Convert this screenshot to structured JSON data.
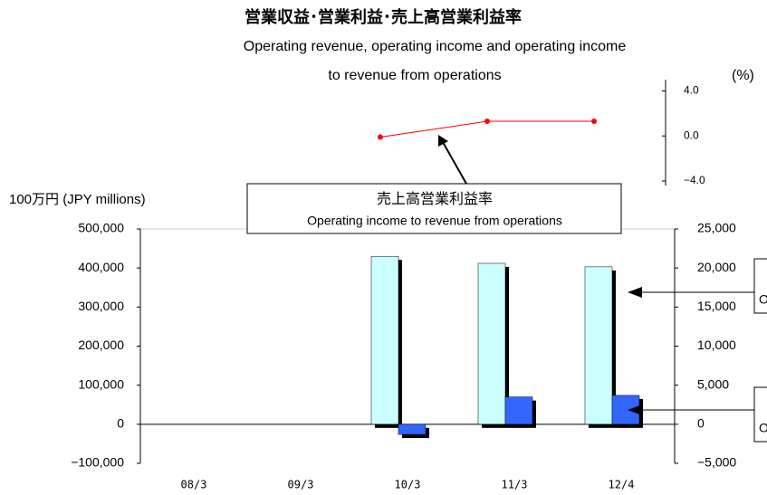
{
  "chart_data": {
    "type": "bar",
    "title": "営業収益･営業利益･売上高営業利益率",
    "subtitle": [
      "Operating revenue, operating income and operating income",
      "to revenue from operations"
    ],
    "y_label": "100万円 (JPY millions)",
    "y3_label": "(%)",
    "categories": [
      "08/3",
      "09/3",
      "10/3",
      "11/3",
      "12/4"
    ],
    "ylim": [
      -100000,
      500000
    ],
    "yticks": [
      {
        "value": -100000,
        "label": "−100,000"
      },
      0,
      {
        "value": 100000,
        "label": "100,000"
      },
      {
        "value": 200000,
        "label": "200,000"
      },
      {
        "value": 300000,
        "label": "300,000"
      },
      {
        "value": 400000,
        "label": "400,000"
      },
      {
        "value": 500000,
        "label": "500,000"
      }
    ],
    "y2lim": [
      -5000,
      25000
    ],
    "y2ticks": [
      {
        "value": -5000,
        "label": "−5,000"
      },
      0,
      {
        "value": 5000,
        "label": "5,000"
      },
      {
        "value": 10000,
        "label": "10,000"
      },
      {
        "value": 15000,
        "label": "15,000"
      },
      {
        "value": 20000,
        "label": "20,000"
      },
      {
        "value": 25000,
        "label": "25,000"
      }
    ],
    "y3lim": [
      -4.4,
      5
    ],
    "y3ticks": [
      {
        "value": -4,
        "label": "−4.0"
      },
      {
        "value": 0,
        "label": "0.0"
      },
      {
        "value": 4,
        "label": "4.0"
      }
    ],
    "series": [
      {
        "name": "Operating revenue",
        "color": "#ccffff",
        "values": [
          null,
          null,
          430000,
          412000,
          403000
        ]
      },
      {
        "name": "Operating income",
        "color": "#3366ff",
        "axis": "y2",
        "values": [
          null,
          null,
          -1300,
          3500,
          3700
        ]
      },
      {
        "name": "売上高営業利益率",
        "name_en": "Operating income to revenue from operations",
        "color": "#ff0000",
        "axis": "y3",
        "type": "line",
        "values": [
          null,
          null,
          -0.1,
          1.3,
          1.3
        ]
      }
    ]
  }
}
